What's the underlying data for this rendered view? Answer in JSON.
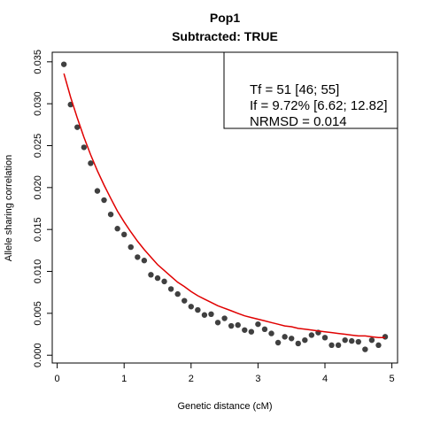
{
  "chart_data": {
    "type": "scatter",
    "title": "Pop1",
    "subtitle": "Subtracted: TRUE",
    "xlabel": "Genetic distance (cM)",
    "ylabel": "Allele sharing correlation",
    "xlim": [
      0,
      5
    ],
    "ylim": [
      0,
      0.035
    ],
    "xticks": [
      0,
      1,
      2,
      3,
      4,
      5
    ],
    "yticks": [
      0.0,
      0.005,
      0.01,
      0.015,
      0.02,
      0.025,
      0.03,
      0.035
    ],
    "xtick_labels": [
      "0",
      "1",
      "2",
      "3",
      "4",
      "5"
    ],
    "ytick_labels": [
      "0.000",
      "0.005",
      "0.010",
      "0.015",
      "0.020",
      "0.025",
      "0.030",
      "0.035"
    ],
    "point_color": "#404040",
    "fit_color": "#e00000",
    "legend": {
      "position": "top-right",
      "lines": [
        "Tf = 51 [46; 55]",
        "If = 9.72% [6.62; 12.82]",
        "NRMSD = 0.014"
      ]
    },
    "series": [
      {
        "kind": "points",
        "x": [
          0.1,
          0.2,
          0.3,
          0.4,
          0.5,
          0.6,
          0.7,
          0.8,
          0.9,
          1.0,
          1.1,
          1.2,
          1.3,
          1.4,
          1.5,
          1.6,
          1.7,
          1.8,
          1.9,
          2.0,
          2.1,
          2.2,
          2.3,
          2.4,
          2.5,
          2.6,
          2.7,
          2.8,
          2.9,
          3.0,
          3.1,
          3.2,
          3.3,
          3.4,
          3.5,
          3.6,
          3.7,
          3.8,
          3.9,
          4.0,
          4.1,
          4.2,
          4.3,
          4.4,
          4.5,
          4.6,
          4.7,
          4.8,
          4.9
        ],
        "y": [
          0.0347,
          0.0299,
          0.0272,
          0.0248,
          0.0229,
          0.0196,
          0.0185,
          0.0168,
          0.0151,
          0.0144,
          0.0129,
          0.0117,
          0.0113,
          0.0096,
          0.0092,
          0.0088,
          0.0079,
          0.0073,
          0.0065,
          0.0058,
          0.0054,
          0.0048,
          0.0049,
          0.0039,
          0.0044,
          0.0035,
          0.0036,
          0.003,
          0.0028,
          0.0037,
          0.0031,
          0.0026,
          0.0015,
          0.0022,
          0.002,
          0.0014,
          0.0018,
          0.0024,
          0.0027,
          0.0021,
          0.0012,
          0.0012,
          0.0018,
          0.0017,
          0.0016,
          0.0007,
          0.0018,
          0.0012,
          0.0022
        ]
      },
      {
        "kind": "fit-line",
        "x": [
          0.1,
          0.2,
          0.3,
          0.4,
          0.5,
          0.6,
          0.7,
          0.8,
          0.9,
          1.0,
          1.1,
          1.2,
          1.3,
          1.4,
          1.5,
          1.6,
          1.7,
          1.8,
          1.9,
          2.0,
          2.1,
          2.2,
          2.3,
          2.4,
          2.5,
          2.6,
          2.7,
          2.8,
          2.9,
          3.0,
          3.1,
          3.2,
          3.3,
          3.4,
          3.5,
          3.6,
          3.7,
          3.8,
          3.9,
          4.0,
          4.1,
          4.2,
          4.3,
          4.4,
          4.5,
          4.6,
          4.7,
          4.8,
          4.9
        ],
        "y": [
          0.0336,
          0.0308,
          0.0283,
          0.026,
          0.0239,
          0.022,
          0.0203,
          0.0187,
          0.0172,
          0.0159,
          0.0147,
          0.0136,
          0.0126,
          0.0117,
          0.0108,
          0.0101,
          0.0094,
          0.0087,
          0.0082,
          0.0076,
          0.0071,
          0.0067,
          0.0063,
          0.0059,
          0.0056,
          0.0053,
          0.005,
          0.0047,
          0.0045,
          0.0043,
          0.0041,
          0.0039,
          0.0037,
          0.0035,
          0.0034,
          0.0032,
          0.0031,
          0.003,
          0.0029,
          0.0028,
          0.0027,
          0.0026,
          0.0025,
          0.0024,
          0.0023,
          0.0023,
          0.0022,
          0.0021,
          0.0021
        ]
      }
    ]
  }
}
